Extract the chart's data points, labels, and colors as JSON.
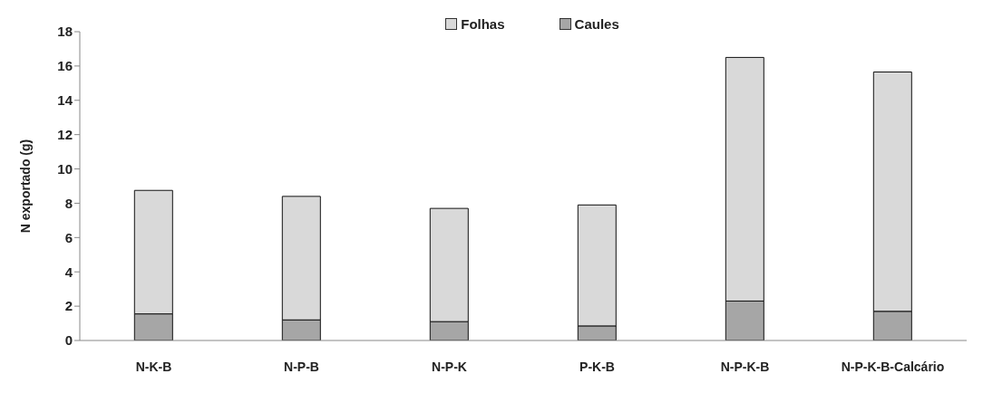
{
  "chart_data": {
    "type": "bar",
    "ylabel": "N exportado (g)",
    "categories": [
      "N-K-B",
      "N-P-B",
      "N-P-K",
      "P-K-B",
      "N-P-K-B",
      "N-P-K-B-Calcário"
    ],
    "stacked": true,
    "series": [
      {
        "name": "Caules",
        "color": "#a6a6a6",
        "values": [
          1.55,
          1.2,
          1.1,
          0.85,
          2.3,
          1.7
        ]
      },
      {
        "name": "Folhas",
        "color": "#d9d9d9",
        "values": [
          7.2,
          7.2,
          6.6,
          7.05,
          14.2,
          13.95
        ]
      }
    ],
    "ylim": [
      0,
      18
    ],
    "yticks": [
      0,
      2,
      4,
      6,
      8,
      10,
      12,
      14,
      16,
      18
    ],
    "grid": false,
    "legend": "top"
  }
}
